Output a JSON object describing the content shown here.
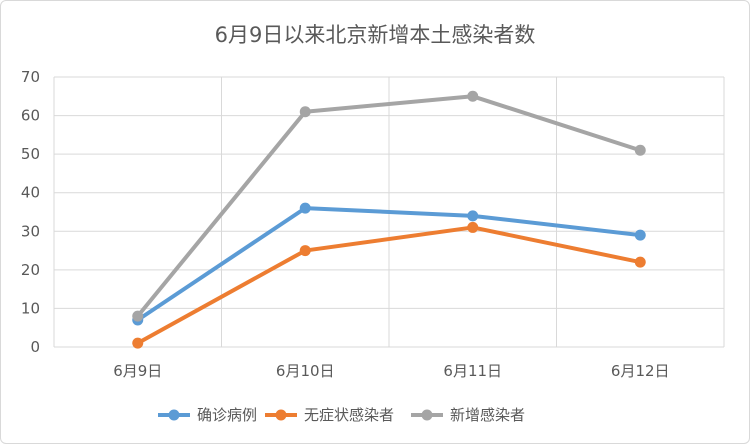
{
  "chart_data": {
    "type": "line",
    "title": "6月9日以来北京新增本土感染者数",
    "categories": [
      "6月9日",
      "6月10日",
      "6月11日",
      "6月12日"
    ],
    "ylim": [
      0,
      70
    ],
    "yticks": [
      0,
      10,
      20,
      30,
      40,
      50,
      60,
      70
    ],
    "grid": true,
    "legend_position": "bottom",
    "series": [
      {
        "name": "确诊病例",
        "color": "#5b9bd5",
        "values": [
          7,
          36,
          34,
          29
        ]
      },
      {
        "name": "无症状感染者",
        "color": "#ed7d31",
        "values": [
          1,
          25,
          31,
          22
        ]
      },
      {
        "name": "新增感染者",
        "color": "#a5a5a5",
        "values": [
          8,
          61,
          65,
          51
        ]
      }
    ]
  }
}
